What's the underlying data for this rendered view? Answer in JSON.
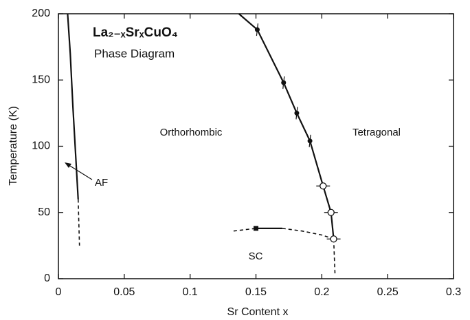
{
  "chart_data": {
    "type": "line",
    "title": "La₂₋ₓSrₓCuO₄",
    "subtitle": "Phase Diagram",
    "x_label": "Sr Content x",
    "y_label": "Temperature (K)",
    "annotations": [
      "Orthorhombic",
      "Tetragonal",
      "AF",
      "SC"
    ],
    "xlim": [
      0,
      0.3
    ],
    "xticks": [
      0,
      0.05,
      0.1,
      0.15,
      0.2,
      0.25,
      0.3
    ],
    "ylim": [
      0,
      200
    ],
    "yticks": [
      0,
      50,
      100,
      150,
      200
    ],
    "color": "#111111",
    "series": [
      {
        "style": "solid",
        "x": [
          0.007,
          0.009,
          0.011,
          0.013,
          0.015
        ],
        "values": [
          200,
          170,
          130,
          95,
          60
        ]
      },
      {
        "style": "dashed",
        "x": [
          0.015,
          0.016
        ],
        "values": [
          60,
          25
        ]
      },
      {
        "style": "solid",
        "x": [
          0.137,
          0.151,
          0.171,
          0.181,
          0.191,
          0.201,
          0.207,
          0.209
        ],
        "values": [
          200,
          188,
          148,
          125,
          104,
          70,
          50,
          30
        ]
      },
      {
        "style": "dashed",
        "x": [
          0.209,
          0.21
        ],
        "values": [
          30,
          4
        ]
      },
      {
        "style": "dashed",
        "x": [
          0.133,
          0.15
        ],
        "values": [
          36,
          38
        ]
      },
      {
        "style": "solid",
        "x": [
          0.15,
          0.17
        ],
        "values": [
          38,
          38
        ]
      },
      {
        "style": "dashed",
        "x": [
          0.17,
          0.185,
          0.2,
          0.209
        ],
        "values": [
          38,
          36,
          33,
          30
        ]
      },
      {
        "style": "none",
        "marker": "dot",
        "x": [
          0.151,
          0.171,
          0.181,
          0.191
        ],
        "values": [
          188,
          148,
          125,
          104
        ]
      },
      {
        "style": "none",
        "marker": "open",
        "x": [
          0.201,
          0.207,
          0.209
        ],
        "values": [
          70,
          50,
          30
        ]
      },
      {
        "style": "none",
        "marker": "square",
        "x": [
          0.15
        ],
        "values": [
          38
        ]
      }
    ]
  }
}
